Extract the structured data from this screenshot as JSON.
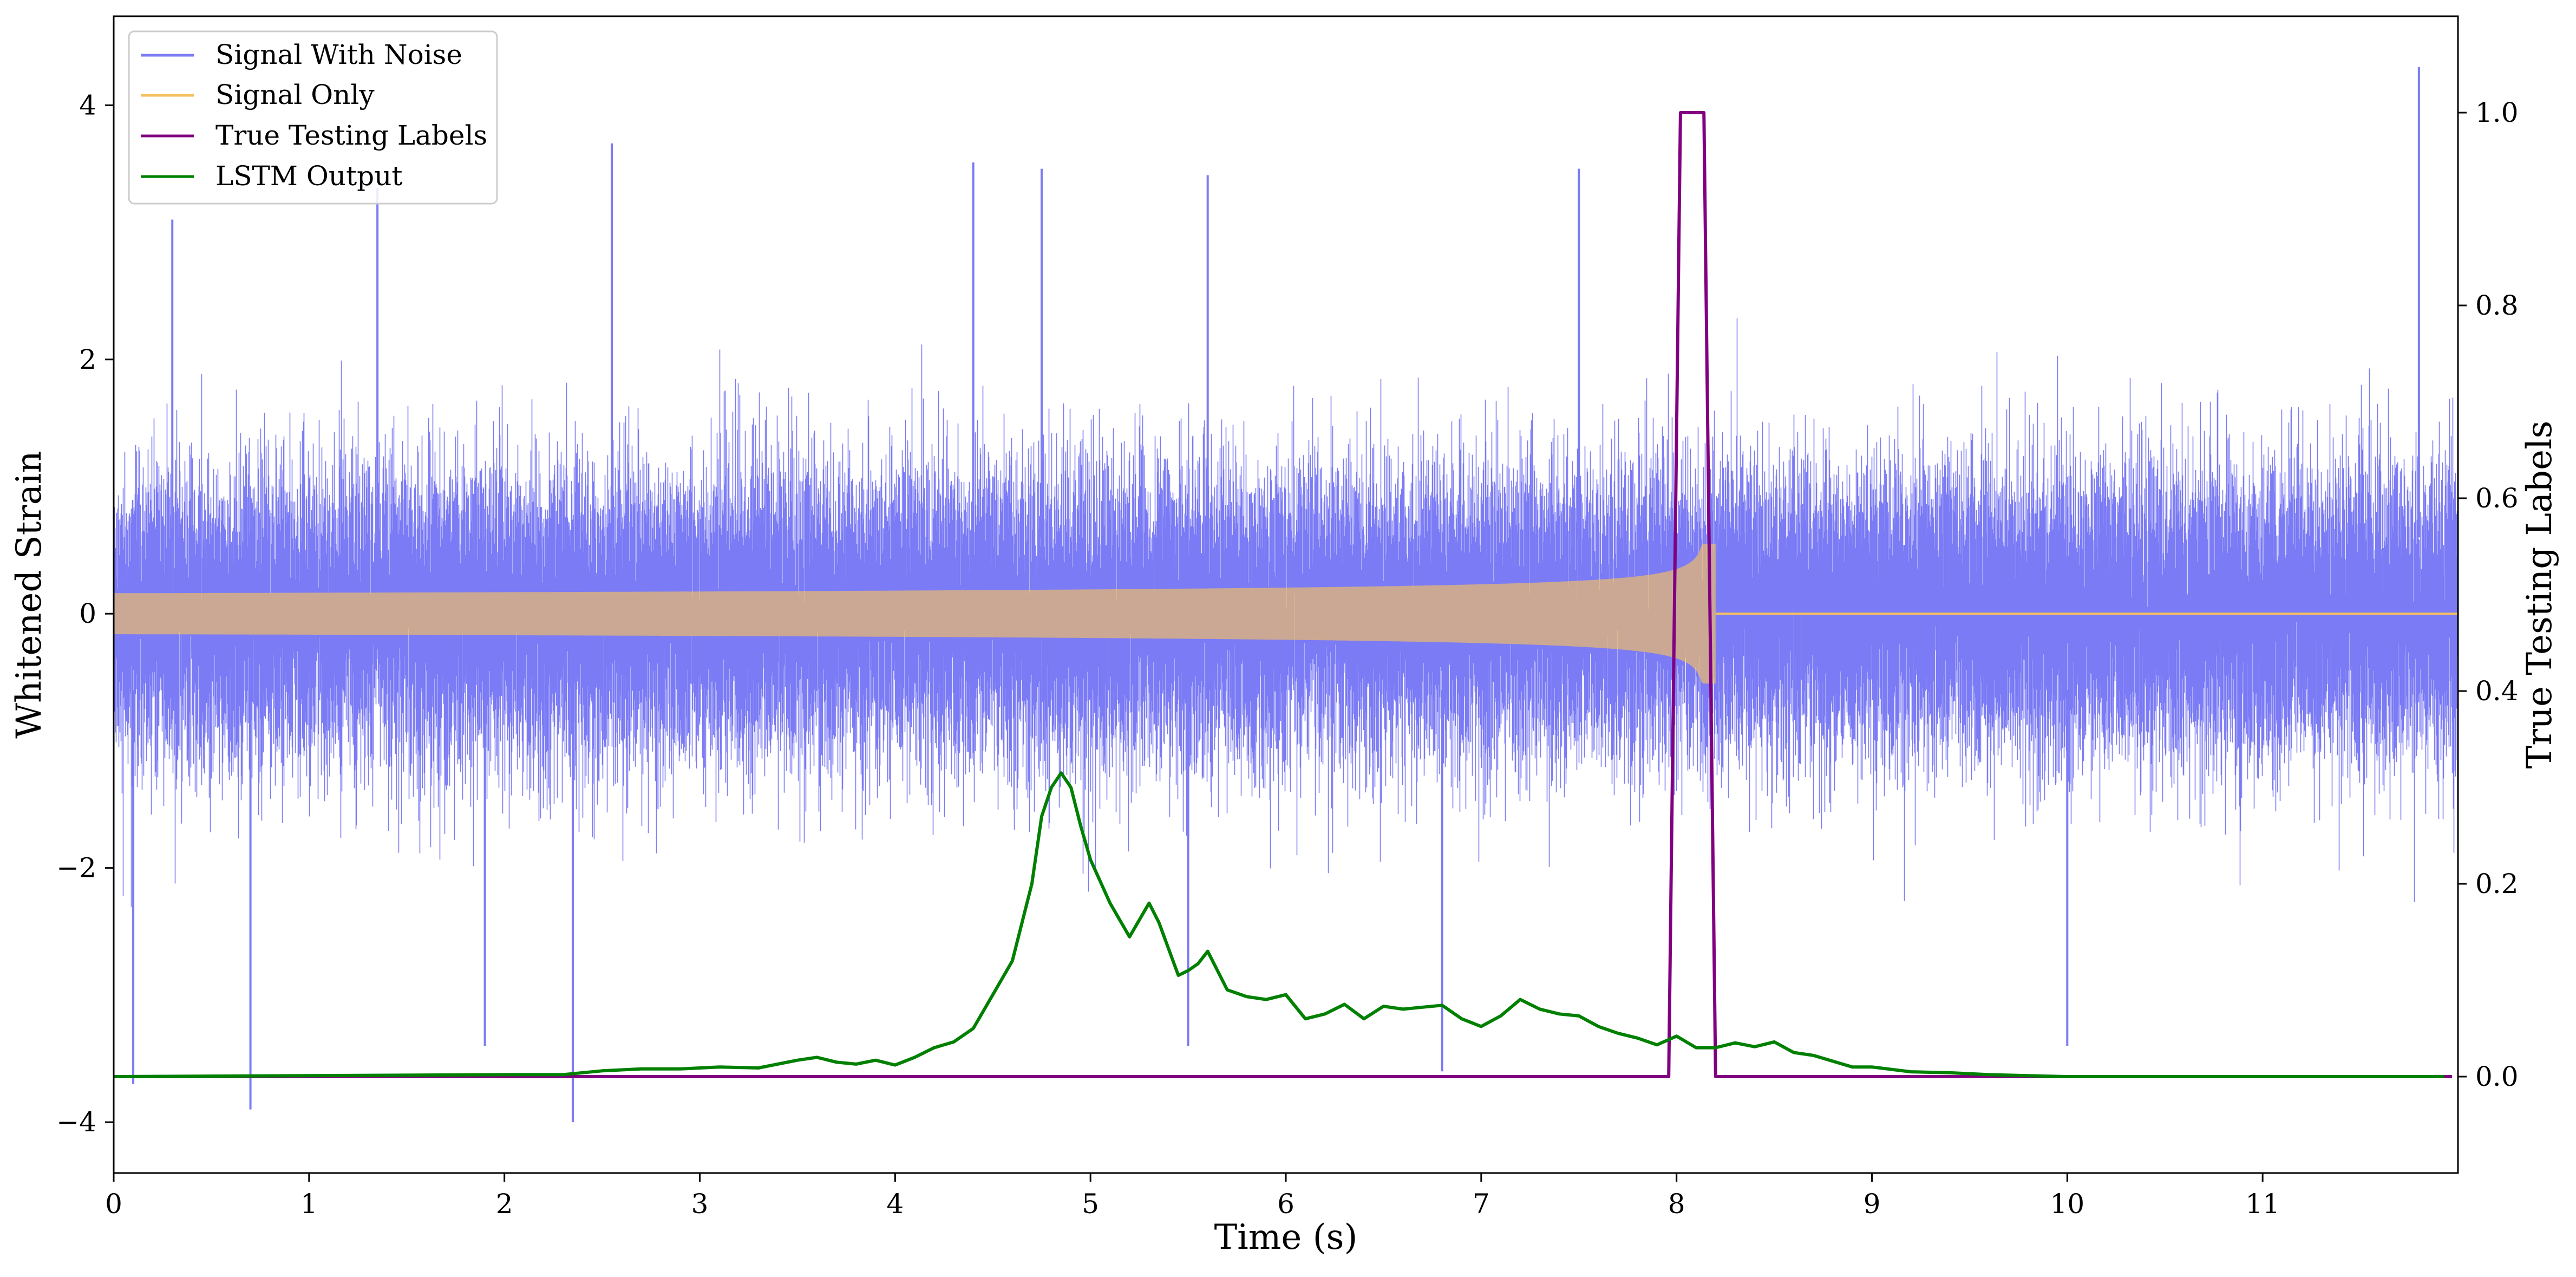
{
  "chart_data": {
    "type": "line",
    "xlabel": "Time (s)",
    "ylabel": "Whitened Strain",
    "y2label": "True Testing Labels",
    "xlim": [
      0,
      12.0
    ],
    "ylim": [
      -4.4,
      4.7
    ],
    "y2lim": [
      -0.1,
      1.1
    ],
    "x_ticks": [
      0,
      1,
      2,
      3,
      4,
      5,
      6,
      7,
      8,
      9,
      10,
      11
    ],
    "y_ticks": [
      -4,
      -2,
      0,
      2,
      4
    ],
    "y2_ticks": [
      0.0,
      0.2,
      0.4,
      0.6,
      0.8,
      1.0
    ],
    "grid": false,
    "legend_position": "top-left",
    "legend": [
      "Signal With Noise",
      "Signal Only",
      "True Testing Labels",
      "LSTM Output"
    ],
    "series": [
      {
        "name": "Signal With Noise",
        "axis": "left",
        "color": "#7b7bf5",
        "noise": {
          "sigma": 0.55,
          "duration": 12.0,
          "sample_rate": 4096
        },
        "peaks": [
          {
            "x": 0.3,
            "y": 3.1
          },
          {
            "x": 1.35,
            "y": 3.35
          },
          {
            "x": 2.55,
            "y": 3.7
          },
          {
            "x": 4.4,
            "y": 3.55
          },
          {
            "x": 4.75,
            "y": 3.5
          },
          {
            "x": 5.6,
            "y": 3.45
          },
          {
            "x": 7.5,
            "y": 3.5
          },
          {
            "x": 11.8,
            "y": 4.3
          },
          {
            "x": 0.1,
            "y": -3.7
          },
          {
            "x": 0.7,
            "y": -3.9
          },
          {
            "x": 2.35,
            "y": -4.0
          },
          {
            "x": 1.9,
            "y": -3.4
          },
          {
            "x": 6.8,
            "y": -3.6
          },
          {
            "x": 10.0,
            "y": -3.4
          },
          {
            "x": 5.5,
            "y": -3.4
          }
        ]
      },
      {
        "name": "Signal Only",
        "axis": "left",
        "color": "#f5c060",
        "chirp": {
          "start": 0.0,
          "merger": 8.15,
          "end": 8.2,
          "amp_start": 0.05,
          "amp_peak": 0.55
        }
      },
      {
        "name": "True Testing Labels",
        "axis": "right",
        "color": "#800080",
        "x": [
          0.0,
          7.96,
          8.02,
          8.14,
          8.2,
          11.97
        ],
        "y": [
          0.0,
          0.0,
          1.0,
          1.0,
          0.0,
          0.0
        ]
      },
      {
        "name": "LSTM Output",
        "axis": "right",
        "color": "#008000",
        "x": [
          0.0,
          1.0,
          2.0,
          2.3,
          2.5,
          2.7,
          2.9,
          3.1,
          3.3,
          3.5,
          3.6,
          3.7,
          3.8,
          3.9,
          4.0,
          4.1,
          4.2,
          4.3,
          4.4,
          4.5,
          4.6,
          4.7,
          4.75,
          4.8,
          4.85,
          4.9,
          4.95,
          5.0,
          5.1,
          5.2,
          5.3,
          5.35,
          5.45,
          5.5,
          5.55,
          5.6,
          5.7,
          5.8,
          5.9,
          6.0,
          6.1,
          6.2,
          6.3,
          6.4,
          6.5,
          6.6,
          6.7,
          6.8,
          6.9,
          7.0,
          7.1,
          7.2,
          7.3,
          7.4,
          7.5,
          7.6,
          7.7,
          7.8,
          7.9,
          8.0,
          8.1,
          8.2,
          8.3,
          8.4,
          8.5,
          8.6,
          8.7,
          8.8,
          8.9,
          9.0,
          9.2,
          9.4,
          9.6,
          9.8,
          10.0,
          10.5,
          11.0,
          11.5,
          11.93
        ],
        "y": [
          0.0,
          0.001,
          0.002,
          0.002,
          0.006,
          0.008,
          0.008,
          0.01,
          0.009,
          0.017,
          0.02,
          0.015,
          0.013,
          0.017,
          0.012,
          0.02,
          0.03,
          0.036,
          0.05,
          0.085,
          0.12,
          0.2,
          0.27,
          0.3,
          0.315,
          0.3,
          0.26,
          0.225,
          0.18,
          0.145,
          0.18,
          0.16,
          0.105,
          0.11,
          0.117,
          0.13,
          0.09,
          0.083,
          0.08,
          0.085,
          0.06,
          0.065,
          0.075,
          0.06,
          0.073,
          0.07,
          0.072,
          0.074,
          0.06,
          0.052,
          0.063,
          0.08,
          0.07,
          0.065,
          0.063,
          0.052,
          0.045,
          0.04,
          0.033,
          0.042,
          0.03,
          0.03,
          0.035,
          0.031,
          0.036,
          0.025,
          0.022,
          0.016,
          0.01,
          0.01,
          0.005,
          0.004,
          0.002,
          0.001,
          0.0,
          0.0,
          0.0,
          0.0,
          0.0
        ]
      }
    ]
  }
}
